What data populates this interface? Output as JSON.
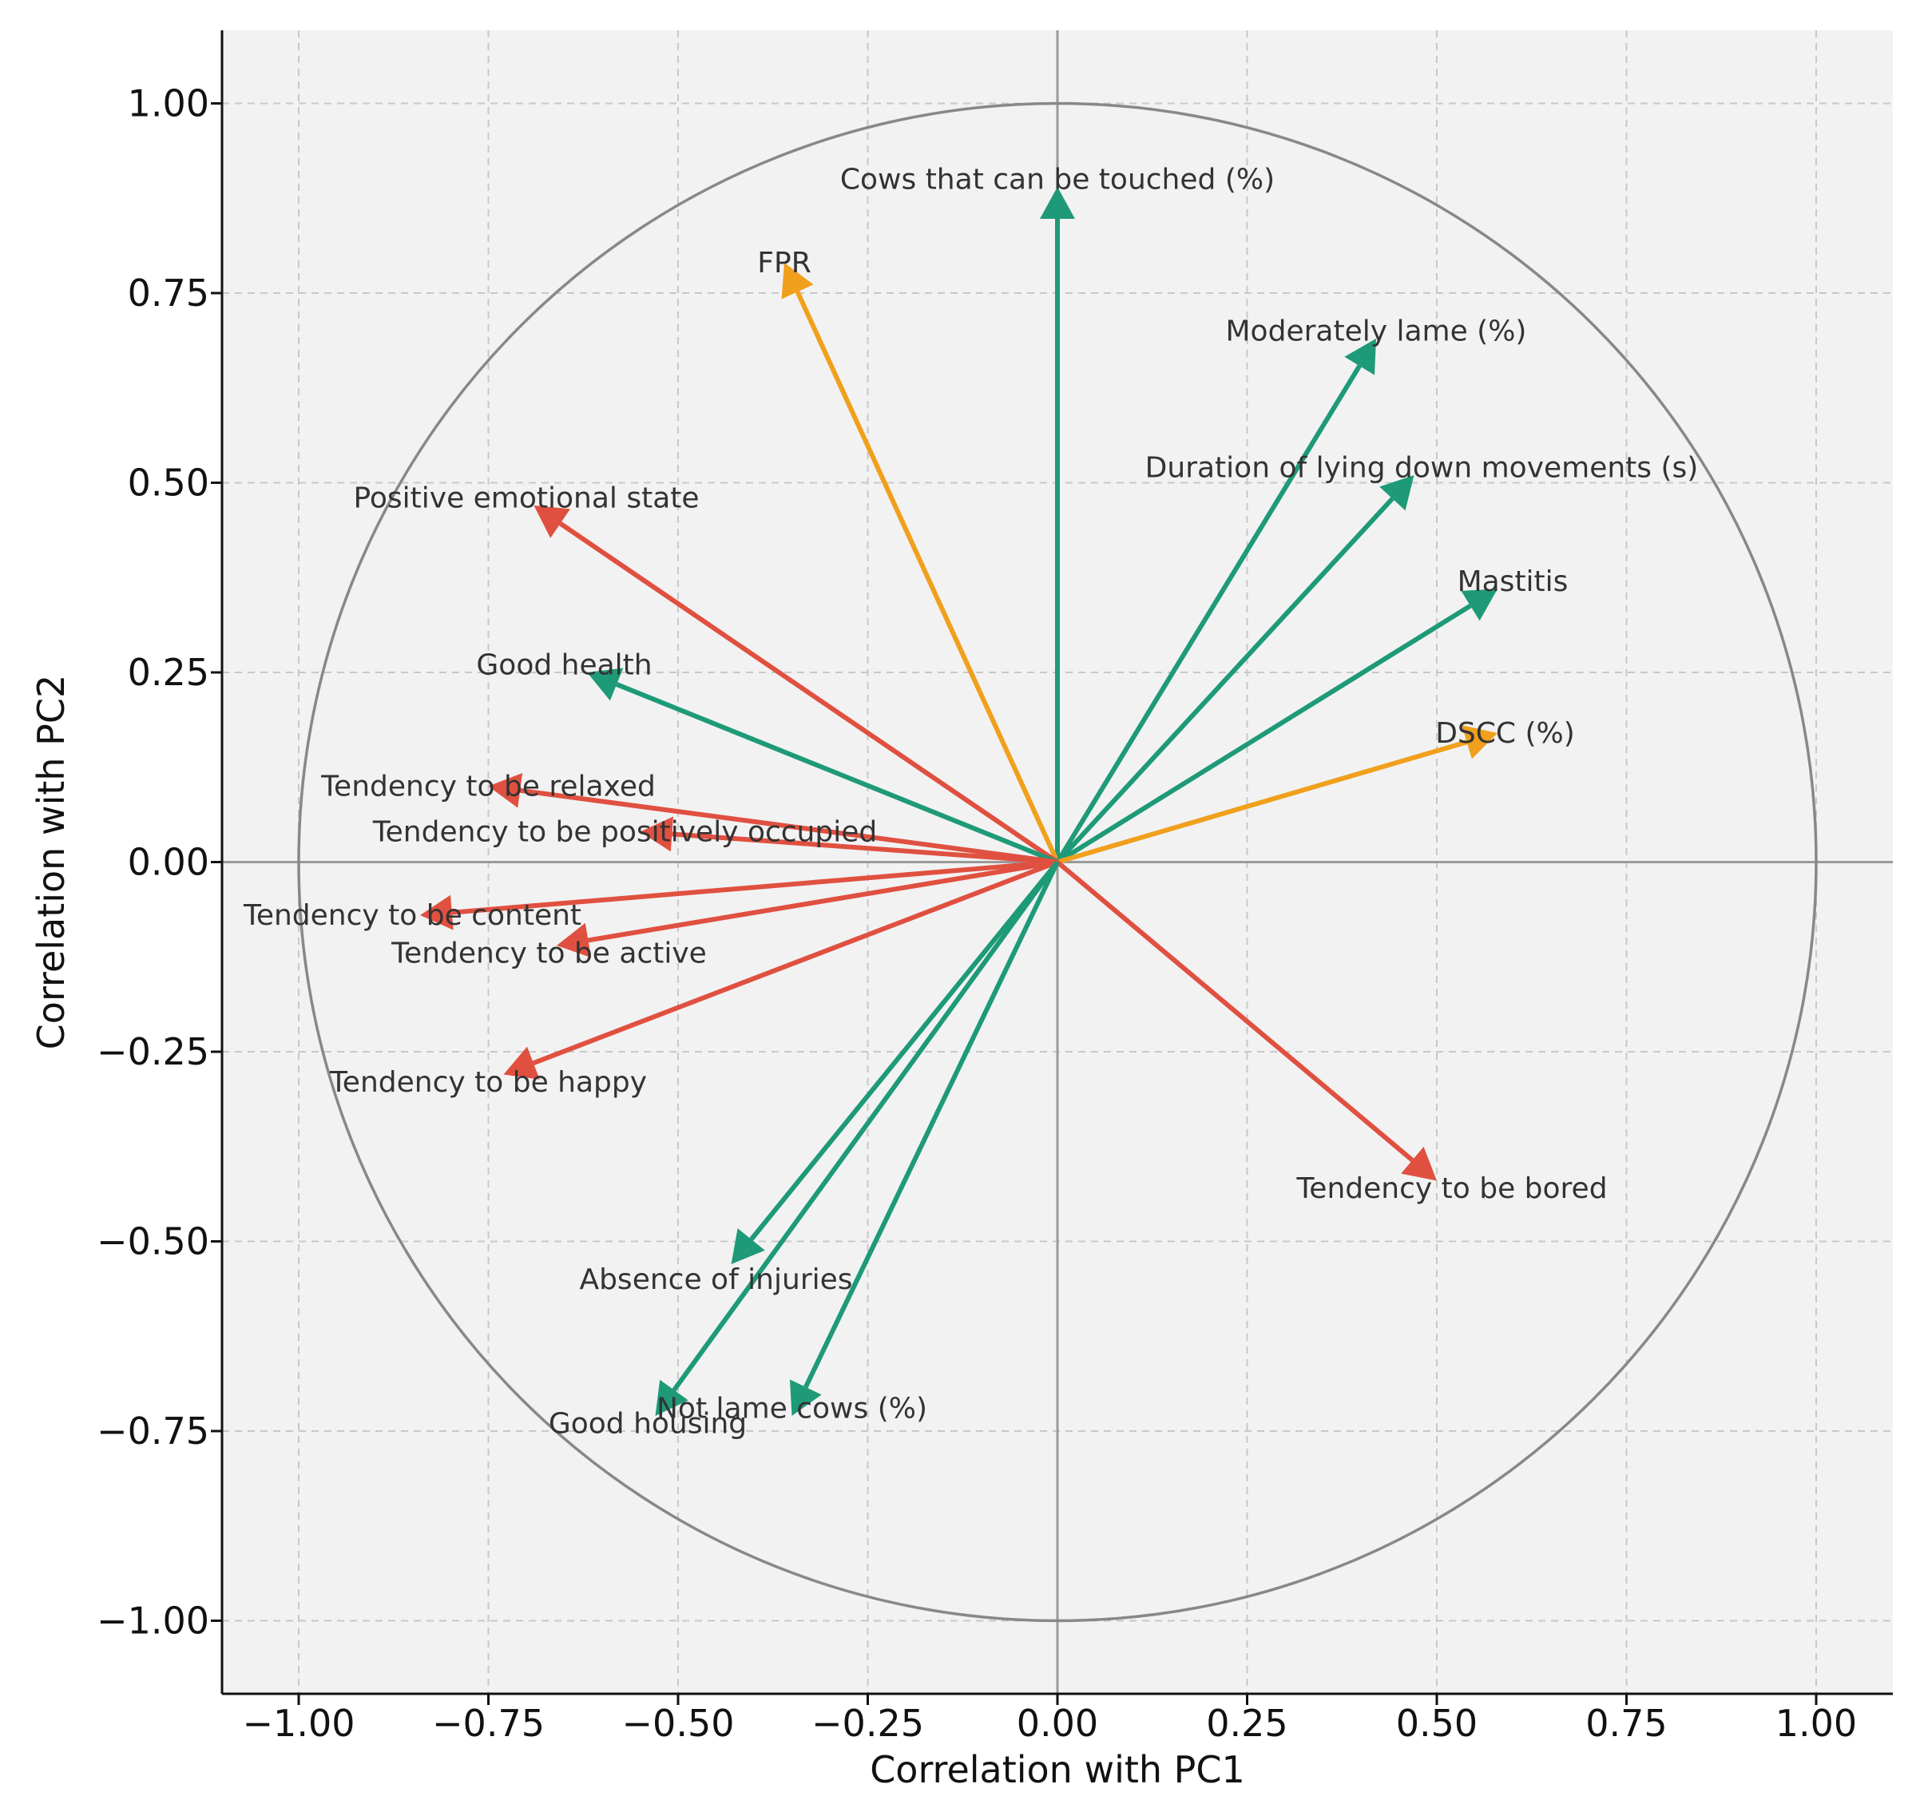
{
  "chart_data": {
    "type": "scatter",
    "subtype": "pca-correlation-circle",
    "title": "",
    "xlabel": "Correlation with PC1",
    "ylabel": "Correlation with PC2",
    "xlim": [
      -1.1,
      1.1
    ],
    "ylim": [
      -1.1,
      1.1
    ],
    "grid": true,
    "xticks": [
      -1.0,
      -0.75,
      -0.5,
      -0.25,
      0.0,
      0.25,
      0.5,
      0.75,
      1.0
    ],
    "yticks": [
      -1.0,
      -0.75,
      -0.5,
      -0.25,
      0.0,
      0.25,
      0.5,
      0.75,
      1.0
    ],
    "xtick_labels": [
      "−1.00",
      "−0.75",
      "−0.50",
      "−0.25",
      "0.00",
      "0.25",
      "0.50",
      "0.75",
      "1.00"
    ],
    "ytick_labels": [
      "−1.00",
      "−0.75",
      "−0.50",
      "−0.25",
      "0.00",
      "0.25",
      "0.50",
      "0.75",
      "1.00"
    ],
    "colors": {
      "green": "#1e9a78",
      "orange": "#f0a01c",
      "red": "#e05040"
    },
    "vectors": [
      {
        "name": "Cows that can be touched (%)",
        "x": 0.0,
        "y": 0.89,
        "color": "green",
        "label_x": 0.0,
        "label_y": 0.9
      },
      {
        "name": "FPR",
        "x": -0.36,
        "y": 0.79,
        "color": "orange",
        "label_x": -0.36,
        "label_y": 0.79
      },
      {
        "name": "Moderately lame (%)",
        "x": 0.42,
        "y": 0.69,
        "color": "green",
        "label_x": 0.42,
        "label_y": 0.7
      },
      {
        "name": "Duration of lying down movements (s)",
        "x": 0.47,
        "y": 0.51,
        "color": "green",
        "label_x": 0.48,
        "label_y": 0.52
      },
      {
        "name": "Mastitis",
        "x": 0.58,
        "y": 0.36,
        "color": "green",
        "label_x": 0.6,
        "label_y": 0.37
      },
      {
        "name": "DSCC (%)",
        "x": 0.58,
        "y": 0.17,
        "color": "orange",
        "label_x": 0.59,
        "label_y": 0.17
      },
      {
        "name": "Tendency to be bored",
        "x": 0.5,
        "y": -0.42,
        "color": "red",
        "label_x": 0.52,
        "label_y": -0.43
      },
      {
        "name": "Positive emotional state",
        "x": -0.69,
        "y": 0.47,
        "color": "red",
        "label_x": -0.7,
        "label_y": 0.48
      },
      {
        "name": "Good health",
        "x": -0.62,
        "y": 0.25,
        "color": "green",
        "label_x": -0.65,
        "label_y": 0.26
      },
      {
        "name": "Tendency to be relaxed",
        "x": -0.75,
        "y": 0.1,
        "color": "red",
        "label_x": -0.75,
        "label_y": 0.1
      },
      {
        "name": "Tendency to be positively occupied",
        "x": -0.55,
        "y": 0.04,
        "color": "red",
        "label_x": -0.57,
        "label_y": 0.04
      },
      {
        "name": "Tendency to be content",
        "x": -0.84,
        "y": -0.07,
        "color": "red",
        "label_x": -0.85,
        "label_y": -0.07
      },
      {
        "name": "Tendency to be active",
        "x": -0.66,
        "y": -0.11,
        "color": "red",
        "label_x": -0.67,
        "label_y": -0.12
      },
      {
        "name": "Tendency to be happy",
        "x": -0.73,
        "y": -0.28,
        "color": "red",
        "label_x": -0.75,
        "label_y": -0.29
      },
      {
        "name": "Absence of injuries",
        "x": -0.43,
        "y": -0.53,
        "color": "green",
        "label_x": -0.45,
        "label_y": -0.55
      },
      {
        "name": "Good housing",
        "x": -0.53,
        "y": -0.73,
        "color": "green",
        "label_x": -0.54,
        "label_y": -0.74
      },
      {
        "name": "Not lame cows (%)",
        "x": -0.35,
        "y": -0.73,
        "color": "green",
        "label_x": -0.35,
        "label_y": -0.72
      }
    ]
  }
}
